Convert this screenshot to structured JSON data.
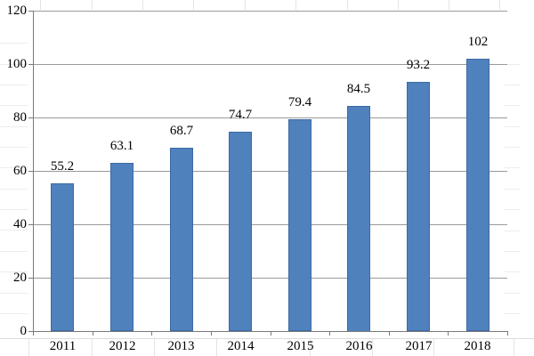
{
  "chart_data": {
    "type": "bar",
    "title": "",
    "xlabel": "",
    "ylabel": "",
    "categories": [
      "2011",
      "2012",
      "2013",
      "2014",
      "2015",
      "2016",
      "2017",
      "2018"
    ],
    "values": [
      55.2,
      63.1,
      68.7,
      74.7,
      79.4,
      84.5,
      93.2,
      102
    ],
    "data_labels": [
      "55.2",
      "63.1",
      "68.7",
      "74.7",
      "79.4",
      "84.5",
      "93.2",
      "102"
    ],
    "y_ticks": [
      "0",
      "20",
      "40",
      "60",
      "80",
      "100",
      "120"
    ],
    "y_tick_values": [
      0,
      20,
      40,
      60,
      80,
      100,
      120
    ],
    "ylim": [
      0,
      120
    ],
    "grid": true,
    "legend": false,
    "colors": {
      "bar_fill": "#4f81bd",
      "bar_border": "#3c69a5",
      "gridline": "#9a9a9a",
      "axis": "#7a7a7a",
      "label_text": "#000000",
      "background": "#ffffff",
      "sheet_gridline": "#e4e4e4",
      "sheet_gridline_light": "#ececec"
    }
  }
}
